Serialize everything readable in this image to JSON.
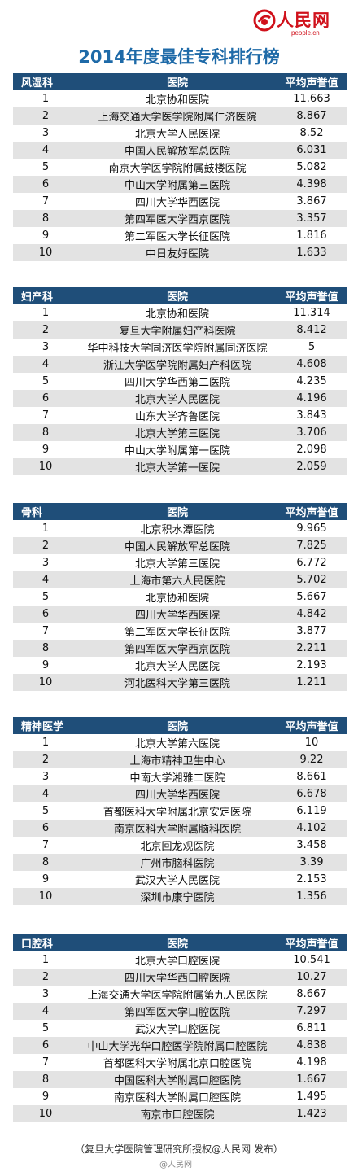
{
  "logo": {
    "text": "人民网",
    "sub": "people.cn"
  },
  "title": "2014年度最佳专科排行榜",
  "columns": {
    "hospital": "医院",
    "score": "平均声誉值"
  },
  "sections": [
    {
      "name": "风湿科",
      "rows": [
        {
          "rank": "1",
          "hospital": "北京协和医院",
          "score": "11.663"
        },
        {
          "rank": "2",
          "hospital": "上海交通大学医学院附属仁济医院",
          "score": "8.867"
        },
        {
          "rank": "3",
          "hospital": "北京大学人民医院",
          "score": "8.52"
        },
        {
          "rank": "4",
          "hospital": "中国人民解放军总医院",
          "score": "6.031"
        },
        {
          "rank": "5",
          "hospital": "南京大学医学院附属鼓楼医院",
          "score": "5.082"
        },
        {
          "rank": "6",
          "hospital": "中山大学附属第三医院",
          "score": "4.398"
        },
        {
          "rank": "7",
          "hospital": "四川大学华西医院",
          "score": "3.867"
        },
        {
          "rank": "8",
          "hospital": "第四军医大学西京医院",
          "score": "3.357"
        },
        {
          "rank": "9",
          "hospital": "第二军医大学长征医院",
          "score": "1.816"
        },
        {
          "rank": "10",
          "hospital": "中日友好医院",
          "score": "1.633"
        }
      ]
    },
    {
      "name": "妇产科",
      "rows": [
        {
          "rank": "1",
          "hospital": "北京协和医院",
          "score": "11.314"
        },
        {
          "rank": "2",
          "hospital": "复旦大学附属妇产科医院",
          "score": "8.412"
        },
        {
          "rank": "3",
          "hospital": "华中科技大学同济医学院附属同济医院",
          "score": "5"
        },
        {
          "rank": "4",
          "hospital": "浙江大学医学院附属妇产科医院",
          "score": "4.608"
        },
        {
          "rank": "5",
          "hospital": "四川大学华西第二医院",
          "score": "4.235"
        },
        {
          "rank": "6",
          "hospital": "北京大学人民医院",
          "score": "4.196"
        },
        {
          "rank": "7",
          "hospital": "山东大学齐鲁医院",
          "score": "3.843"
        },
        {
          "rank": "8",
          "hospital": "北京大学第三医院",
          "score": "3.706"
        },
        {
          "rank": "9",
          "hospital": "中山大学附属第一医院",
          "score": "2.098"
        },
        {
          "rank": "10",
          "hospital": "北京大学第一医院",
          "score": "2.059"
        }
      ]
    },
    {
      "name": "骨科",
      "rows": [
        {
          "rank": "1",
          "hospital": "北京积水潭医院",
          "score": "9.965"
        },
        {
          "rank": "2",
          "hospital": "中国人民解放军总医院",
          "score": "7.825"
        },
        {
          "rank": "3",
          "hospital": "北京大学第三医院",
          "score": "6.772"
        },
        {
          "rank": "4",
          "hospital": "上海市第六人民医院",
          "score": "5.702"
        },
        {
          "rank": "5",
          "hospital": "北京协和医院",
          "score": "5.667"
        },
        {
          "rank": "6",
          "hospital": "四川大学华西医院",
          "score": "4.842"
        },
        {
          "rank": "7",
          "hospital": "第二军医大学长征医院",
          "score": "3.877"
        },
        {
          "rank": "8",
          "hospital": "第四军医大学西京医院",
          "score": "2.211"
        },
        {
          "rank": "9",
          "hospital": "北京大学人民医院",
          "score": "2.193"
        },
        {
          "rank": "10",
          "hospital": "河北医科大学第三医院",
          "score": "1.211"
        }
      ]
    },
    {
      "name": "精神医学",
      "rows": [
        {
          "rank": "1",
          "hospital": "北京大学第六医院",
          "score": "10"
        },
        {
          "rank": "2",
          "hospital": "上海市精神卫生中心",
          "score": "9.22"
        },
        {
          "rank": "3",
          "hospital": "中南大学湘雅二医院",
          "score": "8.661"
        },
        {
          "rank": "4",
          "hospital": "四川大学华西医院",
          "score": "6.678"
        },
        {
          "rank": "5",
          "hospital": "首都医科大学附属北京安定医院",
          "score": "6.119"
        },
        {
          "rank": "6",
          "hospital": "南京医科大学附属脑科医院",
          "score": "4.102"
        },
        {
          "rank": "7",
          "hospital": "北京回龙观医院",
          "score": "3.458"
        },
        {
          "rank": "8",
          "hospital": "广州市脑科医院",
          "score": "3.39"
        },
        {
          "rank": "9",
          "hospital": "武汉大学人民医院",
          "score": "2.153"
        },
        {
          "rank": "10",
          "hospital": "深圳市康宁医院",
          "score": "1.356"
        }
      ]
    },
    {
      "name": "口腔科",
      "rows": [
        {
          "rank": "1",
          "hospital": "北京大学口腔医院",
          "score": "10.541"
        },
        {
          "rank": "2",
          "hospital": "四川大学华西口腔医院",
          "score": "10.27"
        },
        {
          "rank": "3",
          "hospital": "上海交通大学医学院附属第九人民医院",
          "score": "8.667"
        },
        {
          "rank": "4",
          "hospital": "第四军医大学口腔医院",
          "score": "7.297"
        },
        {
          "rank": "5",
          "hospital": "武汉大学口腔医院",
          "score": "6.811"
        },
        {
          "rank": "6",
          "hospital": "中山大学光华口腔医学院附属口腔医院",
          "score": "4.838"
        },
        {
          "rank": "7",
          "hospital": "首都医科大学附属北京口腔医院",
          "score": "4.198"
        },
        {
          "rank": "8",
          "hospital": "中国医科大学附属口腔医院",
          "score": "1.667"
        },
        {
          "rank": "9",
          "hospital": "南京医科大学附属口腔医院",
          "score": "1.495"
        },
        {
          "rank": "10",
          "hospital": "南京市口腔医院",
          "score": "1.423"
        }
      ]
    }
  ],
  "footer": "（复旦大学医院管理研究所授权@人民网 发布）",
  "watermark": "@人民网"
}
